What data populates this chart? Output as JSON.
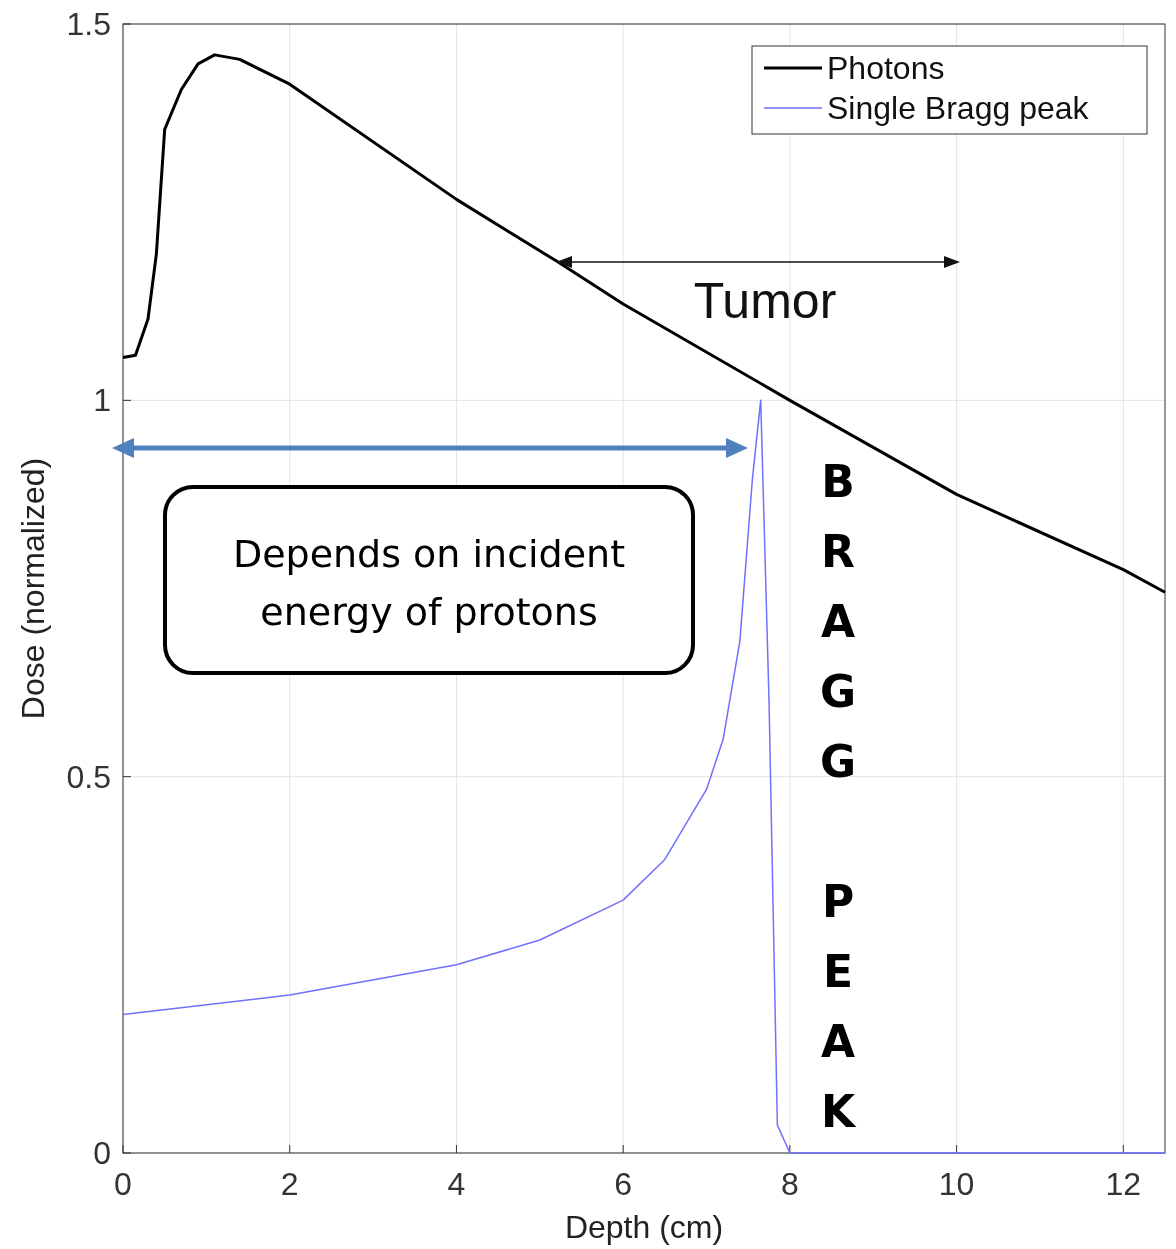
{
  "chart_data": {
    "type": "line",
    "xlabel": "Depth (cm)",
    "ylabel": "Dose (normalized)",
    "xlim": [
      0,
      12.5
    ],
    "ylim": [
      0,
      1.5
    ],
    "xticks": [
      0,
      2,
      4,
      6,
      8,
      10,
      12
    ],
    "yticks": [
      0,
      0.5,
      1,
      1.5
    ],
    "grid": true,
    "legend": "top right",
    "series": [
      {
        "name": "Photons",
        "color": "#000000",
        "x": [
          0,
          0.15,
          0.3,
          0.4,
          0.5,
          0.7,
          0.9,
          1.1,
          1.4,
          2,
          4,
          5.2,
          6,
          8,
          10,
          12,
          12.5
        ],
        "values": [
          1.057,
          1.06,
          1.108,
          1.194,
          1.36,
          1.413,
          1.447,
          1.459,
          1.453,
          1.42,
          1.267,
          1.185,
          1.128,
          1.0,
          0.875,
          0.775,
          0.745
        ]
      },
      {
        "name": "Single Bragg peak",
        "color": "#7070ff",
        "x": [
          0,
          2,
          4,
          5,
          6,
          6.5,
          7,
          7.2,
          7.4,
          7.55,
          7.65,
          7.75,
          7.85,
          8.0,
          12.5
        ],
        "values": [
          0.184,
          0.21,
          0.25,
          0.283,
          0.336,
          0.39,
          0.483,
          0.55,
          0.68,
          0.895,
          1.0,
          0.6,
          0.037,
          0,
          0
        ]
      }
    ],
    "annotations": [
      "Tumor",
      "Depends on incident energy of protons",
      "BRAGG PEAK"
    ]
  }
}
